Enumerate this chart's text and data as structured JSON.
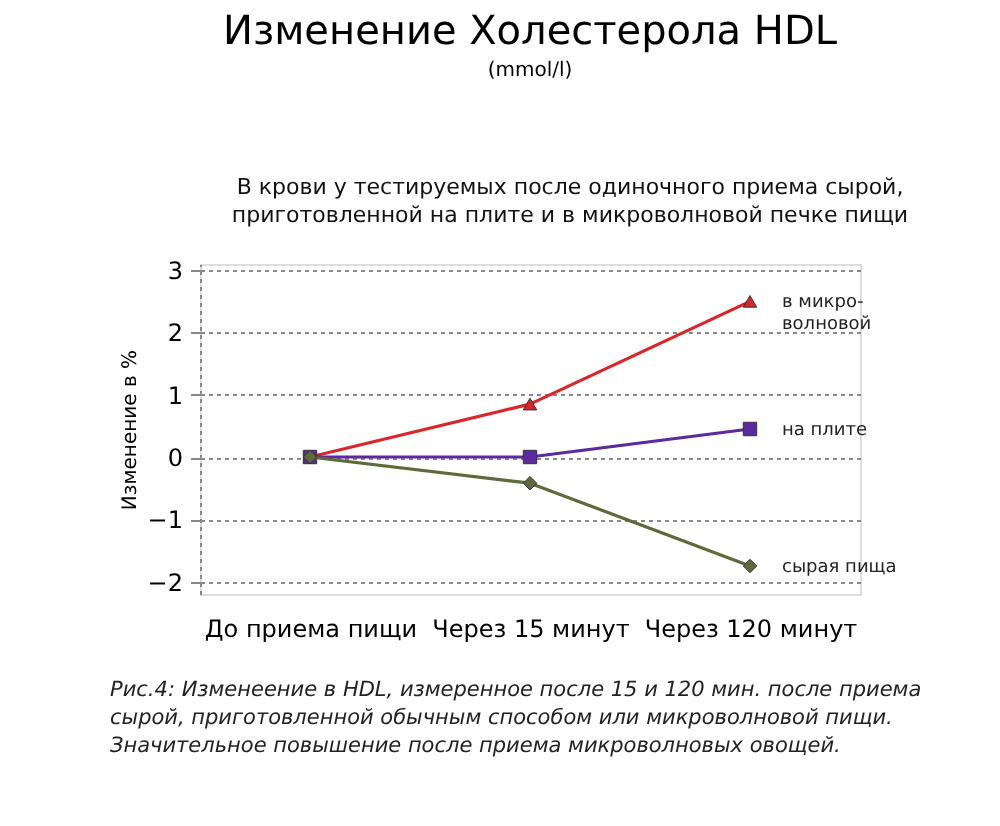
{
  "chart_data": {
    "type": "line",
    "title": "Изменение Холестерола HDL",
    "subtitle": "(mmol/l)",
    "ylabel": "Изменение в %",
    "categories": [
      "До приема пищи",
      "Через 15 минут",
      "Через 120 минут"
    ],
    "series": [
      {
        "name": "в микро-\nволновой",
        "color": "#d9262b",
        "marker": "triangle",
        "values": [
          0,
          0.85,
          2.5
        ]
      },
      {
        "name": "на плите",
        "color": "#5b2a9c",
        "marker": "square",
        "values": [
          0,
          0,
          0.45
        ]
      },
      {
        "name": "сырая пища",
        "color": "#5e6a3a",
        "marker": "diamond",
        "values": [
          0,
          -0.42,
          -1.75
        ]
      }
    ],
    "ylim": [
      -2.2,
      3.1
    ],
    "yticks": [
      -2,
      -1,
      0,
      1,
      2,
      3
    ],
    "grid": "y",
    "line_style": "solid",
    "annotations": [
      "В крови у тестируемых после одиночного приема сырой, приготовленной на плите и в микроволновой печке пищи",
      "Рис.4: Изменеение в HDL, измеренное после 15 и 120 мин. после приема сырой, приготовленной обычным способом или микроволновой пищи. Значительное повышение после приема микроволновых овощей."
    ]
  }
}
